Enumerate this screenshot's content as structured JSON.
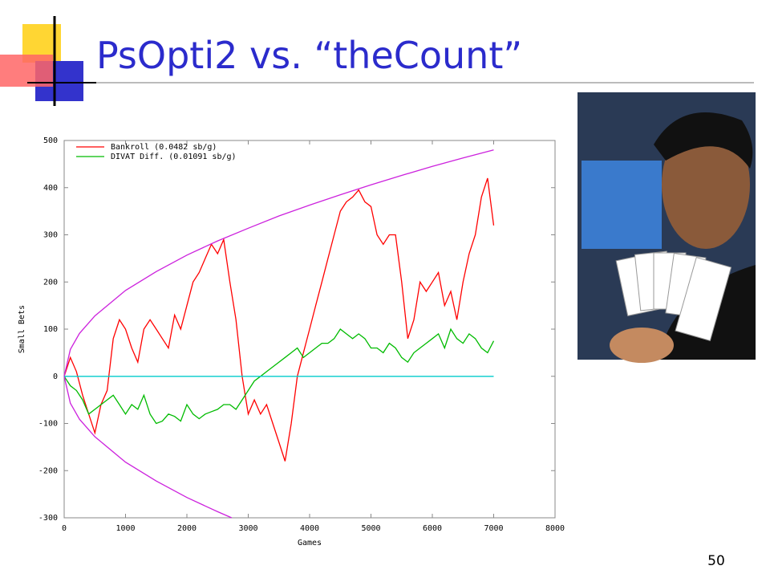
{
  "slide": {
    "title": "PsOpti2 vs. “theCount”",
    "page_number": "50"
  },
  "chart_data": {
    "type": "line",
    "xlabel": "Games",
    "ylabel": "Small Bets",
    "xlim": [
      0,
      8000
    ],
    "xticks": [
      0,
      1000,
      2000,
      3000,
      4000,
      5000,
      6000,
      7000,
      8000
    ],
    "ylim": [
      -300,
      500
    ],
    "yticks": [
      -300,
      -200,
      -100,
      0,
      100,
      200,
      300,
      400,
      500
    ],
    "grid": false,
    "legend": "upper left",
    "x": [
      0,
      100,
      200,
      300,
      400,
      500,
      600,
      700,
      800,
      900,
      1000,
      1100,
      1200,
      1300,
      1400,
      1500,
      1600,
      1700,
      1800,
      1900,
      2000,
      2100,
      2200,
      2300,
      2400,
      2500,
      2600,
      2700,
      2800,
      2900,
      3000,
      3100,
      3200,
      3300,
      3400,
      3500,
      3600,
      3700,
      3800,
      3900,
      4000,
      4100,
      4200,
      4300,
      4400,
      4500,
      4600,
      4700,
      4800,
      4900,
      5000,
      5100,
      5200,
      5300,
      5400,
      5500,
      5600,
      5700,
      5800,
      5900,
      6000,
      6100,
      6200,
      6300,
      6400,
      6500,
      6600,
      6700,
      6800,
      6900,
      7000
    ],
    "series": [
      {
        "name": "Bankroll (0.0482 sb/g)",
        "color": "#ff0000",
        "values": [
          0,
          40,
          10,
          -40,
          -80,
          -120,
          -60,
          -30,
          80,
          120,
          100,
          60,
          30,
          100,
          120,
          100,
          80,
          60,
          130,
          100,
          150,
          200,
          220,
          250,
          280,
          260,
          290,
          200,
          120,
          0,
          -80,
          -50,
          -80,
          -60,
          -100,
          -140,
          -180,
          -100,
          0,
          50,
          100,
          150,
          200,
          250,
          300,
          350,
          370,
          380,
          395,
          370,
          360,
          300,
          280,
          300,
          300,
          200,
          80,
          120,
          200,
          180,
          200,
          220,
          150,
          180,
          120,
          200,
          260,
          300,
          380,
          420,
          320
        ]
      },
      {
        "name": "DIVAT Diff. (0.01091 sb/g)",
        "color": "#00bb00",
        "values": [
          0,
          -20,
          -30,
          -50,
          -80,
          -70,
          -60,
          -50,
          -40,
          -60,
          -80,
          -60,
          -70,
          -40,
          -80,
          -100,
          -95,
          -80,
          -85,
          -95,
          -60,
          -80,
          -90,
          -80,
          -75,
          -70,
          -60,
          -60,
          -70,
          -50,
          -30,
          -10,
          0,
          10,
          20,
          30,
          40,
          50,
          60,
          40,
          50,
          60,
          70,
          70,
          80,
          100,
          90,
          80,
          90,
          80,
          60,
          60,
          50,
          70,
          60,
          40,
          30,
          50,
          60,
          70,
          80,
          90,
          60,
          100,
          80,
          70,
          90,
          80,
          60,
          50,
          75
        ]
      },
      {
        "color": "#cc22dd",
        "x": [
          0,
          100,
          250,
          500,
          1000,
          1500,
          2000,
          2500,
          3000,
          3500,
          4000,
          4500,
          5000,
          5500,
          6000,
          6500,
          7000
        ],
        "values": [
          0,
          57,
          91,
          128,
          182,
          222,
          257,
          287,
          314,
          340,
          363,
          385,
          406,
          426,
          445,
          463,
          480
        ]
      },
      {
        "color": "#cc22dd",
        "x": [
          0,
          100,
          250,
          500,
          1000,
          1500,
          2000,
          2500,
          2730
        ],
        "values": [
          0,
          -57,
          -91,
          -128,
          -182,
          -222,
          -257,
          -287,
          -300
        ]
      },
      {
        "color": "#00cccc",
        "x": [
          0,
          7000
        ],
        "values": [
          0,
          0
        ]
      }
    ]
  }
}
